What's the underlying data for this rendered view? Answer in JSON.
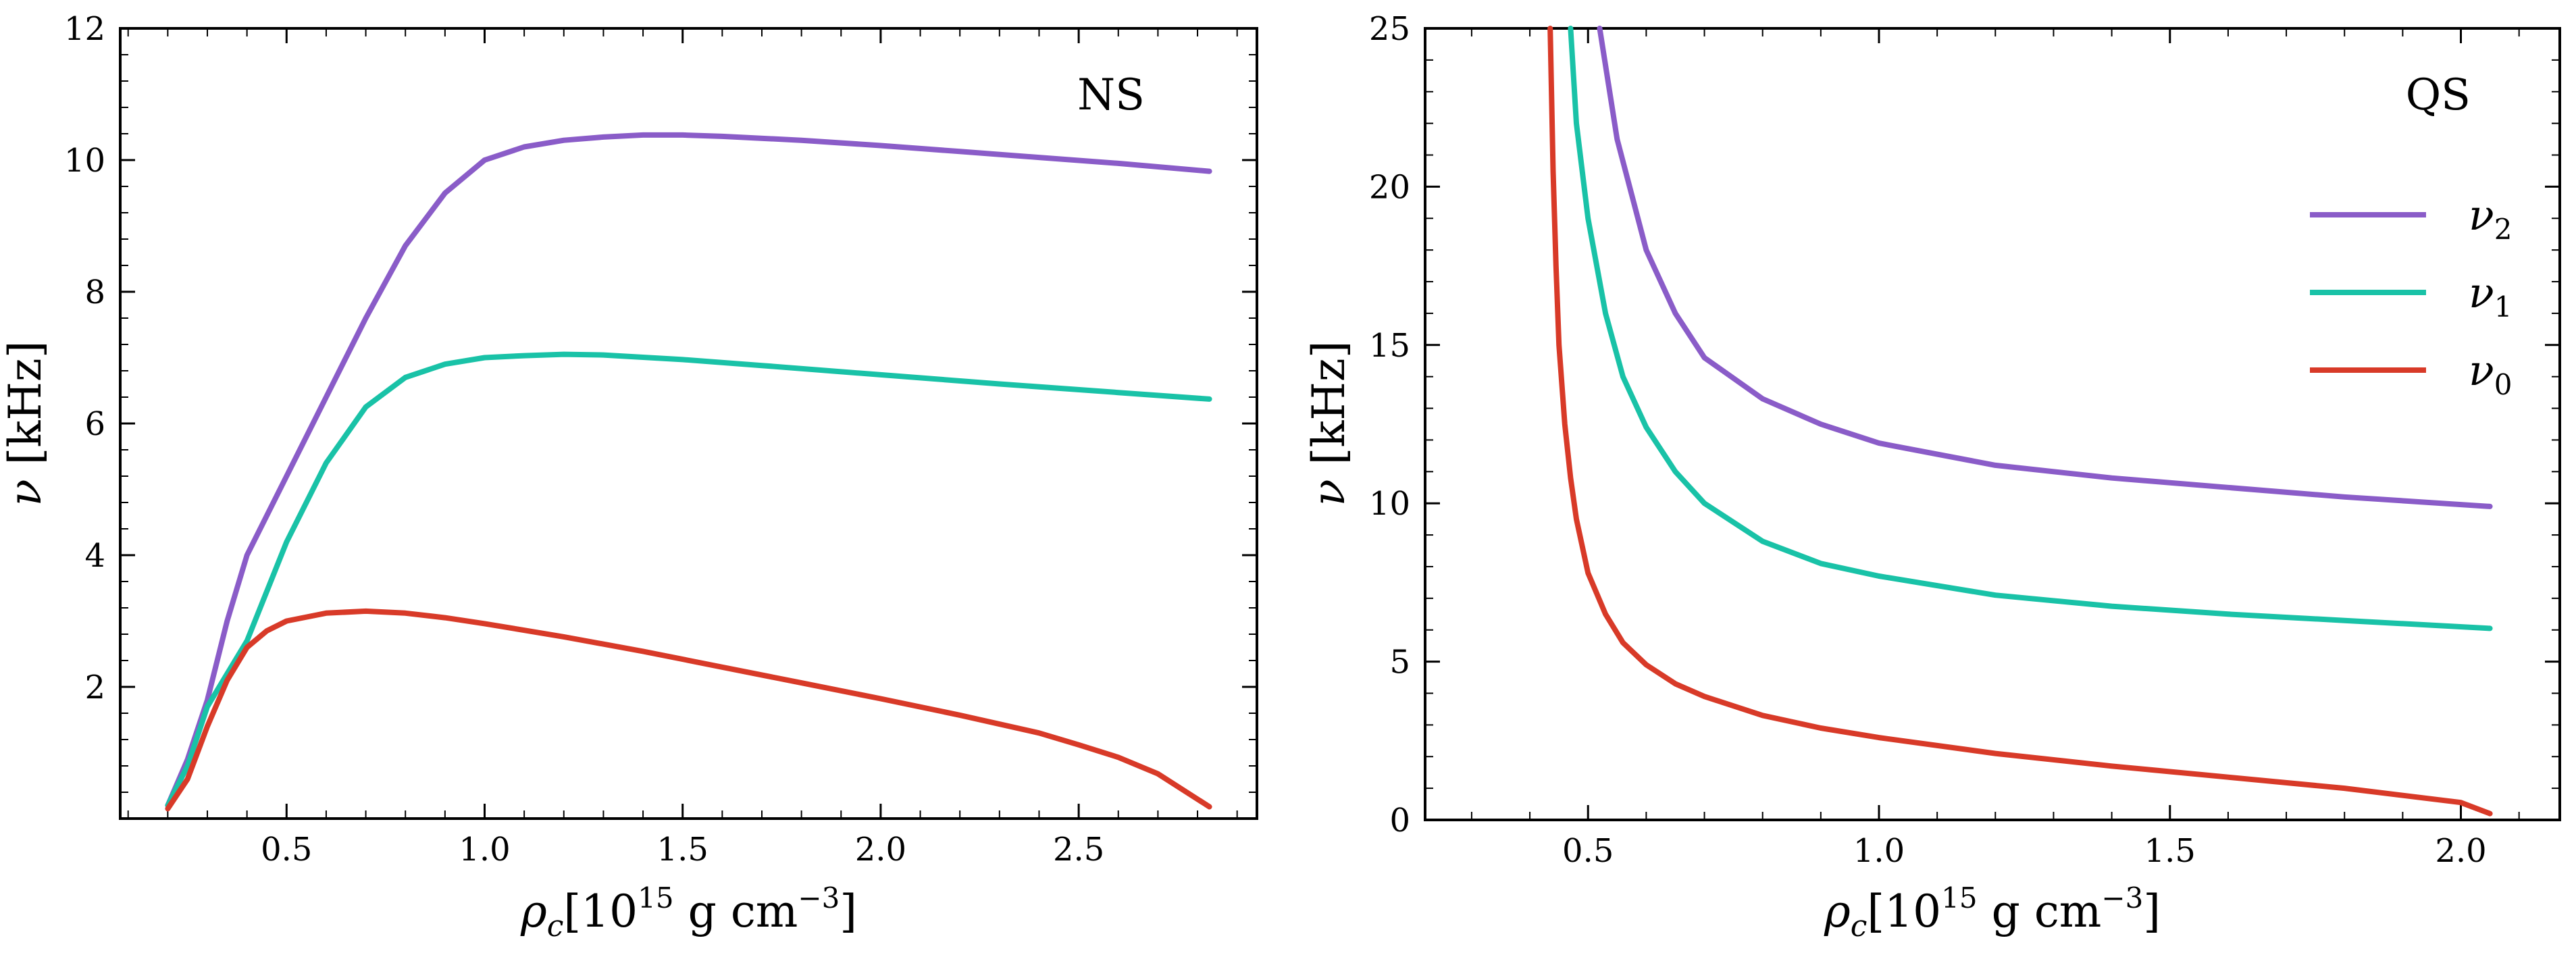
{
  "colors": {
    "nu2": "#8a5cc8",
    "nu1": "#19c2a7",
    "nu0": "#d83a28"
  },
  "chart_data": [
    {
      "type": "line",
      "panel_label": "NS",
      "xlabel_symbol": "ρ",
      "xlabel_sub": "c",
      "xlabel_unit": "[10",
      "xlabel_exp": "15",
      "xlabel_rest": " g cm",
      "xlabel_exp2": "−3",
      "xlabel_close": "]",
      "ylabel_symbol": "ν",
      "ylabel_unit": " [kHz]",
      "xlim": [
        0.08,
        2.95
      ],
      "ylim": [
        0.0,
        12.0
      ],
      "xticks": [
        0.5,
        1.0,
        1.5,
        2.0,
        2.5
      ],
      "xtick_labels": [
        "0.5",
        "1.0",
        "1.5",
        "2.0",
        "2.5"
      ],
      "yticks": [
        2,
        4,
        6,
        8,
        10,
        12
      ],
      "ytick_labels": [
        "2",
        "4",
        "6",
        "8",
        "10",
        "12"
      ],
      "legend": false,
      "series": [
        {
          "name": "ν2",
          "color_key": "nu2",
          "x": [
            0.2,
            0.25,
            0.3,
            0.35,
            0.4,
            0.5,
            0.6,
            0.7,
            0.8,
            0.9,
            1.0,
            1.1,
            1.2,
            1.3,
            1.4,
            1.5,
            1.6,
            1.8,
            2.0,
            2.2,
            2.4,
            2.6,
            2.83
          ],
          "y": [
            0.2,
            0.9,
            1.8,
            3.0,
            4.0,
            5.2,
            6.4,
            7.6,
            8.7,
            9.5,
            10.0,
            10.2,
            10.3,
            10.35,
            10.38,
            10.38,
            10.36,
            10.3,
            10.22,
            10.13,
            10.04,
            9.95,
            9.83
          ]
        },
        {
          "name": "ν1",
          "color_key": "nu1",
          "x": [
            0.2,
            0.25,
            0.3,
            0.35,
            0.4,
            0.5,
            0.6,
            0.7,
            0.8,
            0.9,
            1.0,
            1.1,
            1.2,
            1.3,
            1.5,
            1.7,
            2.0,
            2.3,
            2.6,
            2.83
          ],
          "y": [
            0.2,
            0.8,
            1.7,
            2.2,
            2.7,
            4.2,
            5.4,
            6.25,
            6.7,
            6.9,
            7.0,
            7.03,
            7.05,
            7.04,
            6.97,
            6.88,
            6.74,
            6.6,
            6.47,
            6.37
          ]
        },
        {
          "name": "ν0",
          "color_key": "nu0",
          "x": [
            0.2,
            0.25,
            0.3,
            0.35,
            0.4,
            0.45,
            0.5,
            0.6,
            0.7,
            0.8,
            0.9,
            1.0,
            1.2,
            1.4,
            1.6,
            1.8,
            2.0,
            2.2,
            2.4,
            2.5,
            2.6,
            2.7,
            2.83
          ],
          "y": [
            0.15,
            0.6,
            1.4,
            2.1,
            2.6,
            2.85,
            3.0,
            3.12,
            3.15,
            3.12,
            3.05,
            2.96,
            2.76,
            2.54,
            2.3,
            2.06,
            1.82,
            1.57,
            1.3,
            1.12,
            0.93,
            0.68,
            0.18
          ]
        }
      ]
    },
    {
      "type": "line",
      "panel_label": "QS",
      "xlabel_symbol": "ρ",
      "xlabel_sub": "c",
      "xlabel_unit": "[10",
      "xlabel_exp": "15",
      "xlabel_rest": " g cm",
      "xlabel_exp2": "−3",
      "xlabel_close": "]",
      "ylabel_symbol": "ν",
      "ylabel_unit": " [kHz]",
      "xlim": [
        0.22,
        2.17
      ],
      "ylim": [
        0.0,
        25.0
      ],
      "xticks": [
        0.5,
        1.0,
        1.5,
        2.0
      ],
      "xtick_labels": [
        "0.5",
        "1.0",
        "1.5",
        "2.0"
      ],
      "yticks": [
        0,
        5,
        10,
        15,
        20,
        25
      ],
      "ytick_labels": [
        "0",
        "5",
        "10",
        "15",
        "20",
        "25"
      ],
      "legend": true,
      "legend_position": "top-right",
      "legend_entries": [
        {
          "symbol": "ν",
          "sub": "2",
          "color_key": "nu2"
        },
        {
          "symbol": "ν",
          "sub": "1",
          "color_key": "nu1"
        },
        {
          "symbol": "ν",
          "sub": "0",
          "color_key": "nu0"
        }
      ],
      "series": [
        {
          "name": "ν2",
          "color_key": "nu2",
          "x": [
            0.52,
            0.55,
            0.6,
            0.65,
            0.7,
            0.8,
            0.9,
            1.0,
            1.2,
            1.4,
            1.6,
            1.8,
            2.05
          ],
          "y": [
            25.0,
            21.5,
            18.0,
            16.0,
            14.6,
            13.3,
            12.5,
            11.9,
            11.2,
            10.8,
            10.5,
            10.2,
            9.9
          ]
        },
        {
          "name": "ν1",
          "color_key": "nu1",
          "x": [
            0.47,
            0.48,
            0.5,
            0.53,
            0.56,
            0.6,
            0.65,
            0.7,
            0.8,
            0.9,
            1.0,
            1.2,
            1.4,
            1.6,
            1.8,
            2.05
          ],
          "y": [
            25.0,
            22.0,
            19.0,
            16.0,
            14.0,
            12.4,
            11.0,
            10.0,
            8.8,
            8.1,
            7.7,
            7.1,
            6.75,
            6.5,
            6.3,
            6.05
          ]
        },
        {
          "name": "ν0",
          "color_key": "nu0",
          "x": [
            0.435,
            0.44,
            0.445,
            0.45,
            0.46,
            0.47,
            0.48,
            0.5,
            0.53,
            0.56,
            0.6,
            0.65,
            0.7,
            0.8,
            0.9,
            1.0,
            1.2,
            1.4,
            1.6,
            1.8,
            2.0,
            2.05
          ],
          "y": [
            25.0,
            20.5,
            17.5,
            15.0,
            12.5,
            10.8,
            9.5,
            7.8,
            6.5,
            5.6,
            4.9,
            4.3,
            3.9,
            3.3,
            2.9,
            2.6,
            2.1,
            1.7,
            1.35,
            1.0,
            0.55,
            0.2
          ]
        }
      ]
    }
  ]
}
